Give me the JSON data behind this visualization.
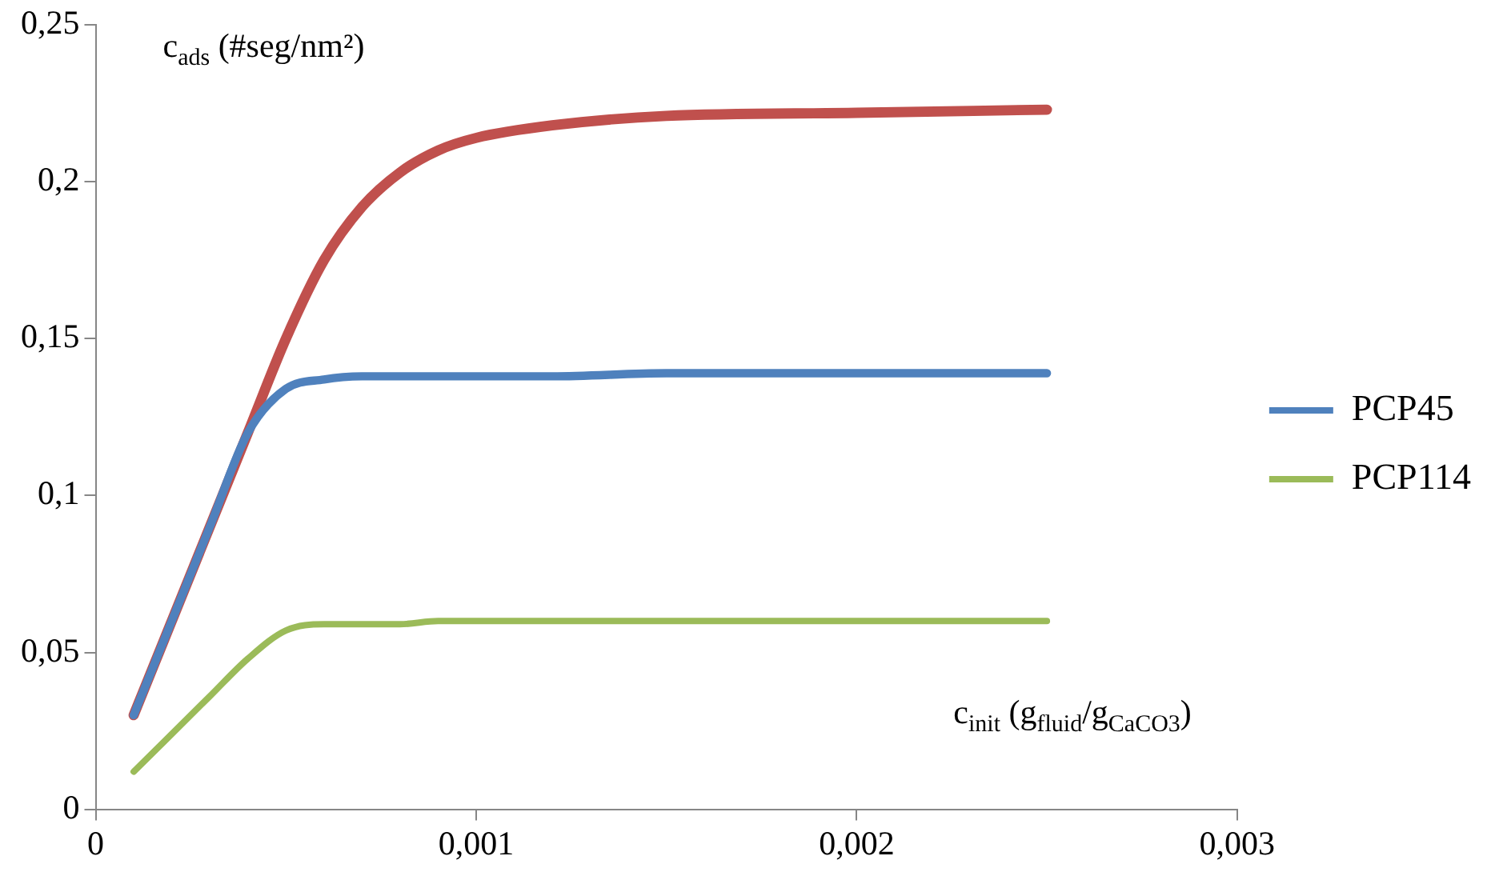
{
  "chart_data": {
    "type": "line",
    "xlabel": "c$_{init}$ (g$_{fluid}$/g$_{CaCO3}$)",
    "ylabel": "c$_{ads}$ (#seg/nm²)",
    "x": [
      0.0001,
      0.0003,
      0.0004,
      0.0005,
      0.0006,
      0.0007,
      0.0008,
      0.0009,
      0.001,
      0.0012,
      0.0015,
      0.002,
      0.0025
    ],
    "series": [
      {
        "color": "#c0504d",
        "values": [
          0.03,
          0.09,
          0.12,
          0.15,
          0.175,
          0.192,
          0.203,
          0.21,
          0.214,
          0.218,
          0.221,
          0.222,
          0.223
        ]
      },
      {
        "name": "PCP45",
        "color": "#4f81bd",
        "values": [
          0.03,
          0.09,
          0.12,
          0.134,
          0.137,
          0.138,
          0.138,
          0.138,
          0.138,
          0.138,
          0.139,
          0.139,
          0.139
        ]
      },
      {
        "name": "PCP114",
        "color": "#9bbb59",
        "values": [
          0.012,
          0.036,
          0.048,
          0.057,
          0.059,
          0.059,
          0.059,
          0.06,
          0.06,
          0.06,
          0.06,
          0.06,
          0.06
        ]
      }
    ],
    "xlim": [
      0,
      0.003
    ],
    "xticks": [
      {
        "value": 0,
        "label": "0"
      },
      {
        "value": 0.001,
        "label": "0,001"
      },
      {
        "value": 0.002,
        "label": "0,002"
      },
      {
        "value": 0.003,
        "label": "0,003"
      }
    ],
    "ylim": [
      0,
      0.25
    ],
    "yticks": [
      {
        "value": 0,
        "label": "0"
      },
      {
        "value": 0.05,
        "label": "0,05"
      },
      {
        "value": 0.1,
        "label": "0,1"
      },
      {
        "value": 0.15,
        "label": "0,15"
      },
      {
        "value": 0.2,
        "label": "0,2"
      },
      {
        "value": 0.25,
        "label": "0,25"
      }
    ],
    "grid": false,
    "legend": "right",
    "marker": "none",
    "line_style": "solid"
  }
}
